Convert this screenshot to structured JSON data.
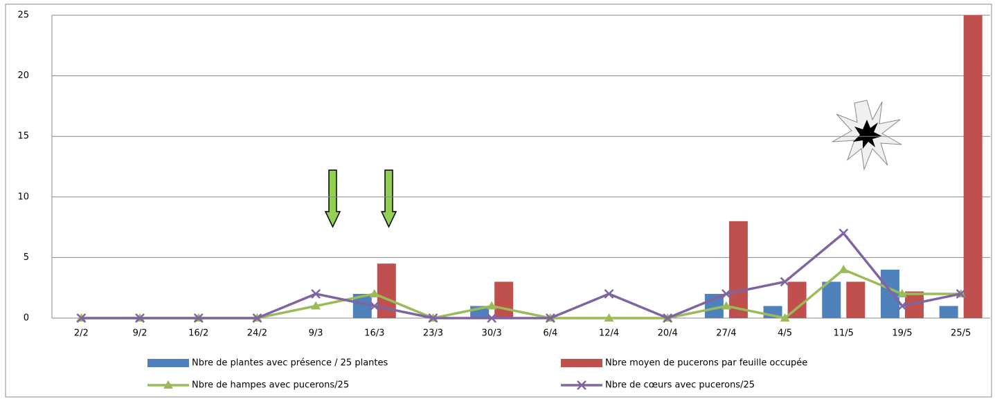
{
  "chart_data": {
    "type": "bar",
    "categories": [
      "2/2",
      "9/2",
      "16/2",
      "24/2",
      "9/3",
      "16/3",
      "23/3",
      "30/3",
      "6/4",
      "12/4",
      "20/4",
      "27/4",
      "4/5",
      "11/5",
      "19/5",
      "25/5"
    ],
    "series": [
      {
        "name": "Nbre de plantes avec présence / 25 plantes",
        "type": "bar",
        "color": "#4f81bd",
        "values": [
          0,
          0,
          0,
          0,
          0,
          2,
          0,
          1,
          0,
          0,
          0,
          2,
          1,
          3,
          4,
          1
        ]
      },
      {
        "name": "Nbre moyen de pucerons par feuille occupée",
        "type": "bar",
        "color": "#c0504d",
        "values": [
          0,
          0,
          0,
          0,
          0,
          4.5,
          0,
          3,
          0,
          0,
          0,
          8,
          3,
          3,
          2.2,
          25
        ]
      },
      {
        "name": "Nbre de hampes avec pucerons/25",
        "type": "line",
        "marker": "triangle",
        "color": "#9bbb59",
        "values": [
          0,
          0,
          0,
          0,
          1,
          2,
          0,
          1,
          0,
          0,
          0,
          1,
          0,
          4,
          2,
          2
        ]
      },
      {
        "name": "Nbre de cœurs avec pucerons/25",
        "type": "line",
        "marker": "x",
        "color": "#8064a2",
        "values": [
          0,
          0,
          0,
          0,
          2,
          1,
          0,
          0,
          0,
          2,
          0,
          2,
          3,
          7,
          1,
          2
        ]
      }
    ],
    "ylim": [
      0,
      25
    ],
    "yticks": [
      0,
      5,
      10,
      15,
      20,
      25
    ],
    "grid": true,
    "legend": "bottom"
  }
}
